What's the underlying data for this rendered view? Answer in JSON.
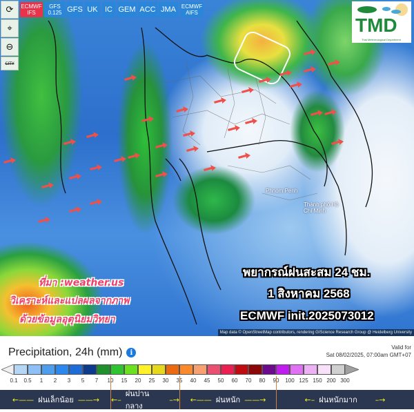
{
  "toolbar": {
    "side_buttons": [
      {
        "icon": "refresh-icon"
      },
      {
        "icon": "location-pin-icon"
      },
      {
        "icon": "zoom-out-icon"
      },
      {
        "icon": "city-toggle-icon",
        "label": "CITY"
      }
    ],
    "model_tabs": [
      {
        "label": "ECMWF IFS",
        "active": true
      },
      {
        "label": "GFS 0.125"
      },
      {
        "label": "GFS"
      },
      {
        "label": "UK"
      },
      {
        "label": "IC"
      },
      {
        "label": "GEM"
      },
      {
        "label": "ACC"
      },
      {
        "label": "JMA"
      },
      {
        "label": "ECMWF AIFS"
      }
    ]
  },
  "logo": {
    "text": "TMD",
    "subtitle": "Thai Meteorological Department"
  },
  "map": {
    "places": [
      "Phnom Penh",
      "Thành phố Hồ Chí Minh"
    ],
    "overlay_right": [
      "พยากรณ์ฝนสะสม 24 ชม.",
      "1 สิงหาคม 2568",
      "ECMWF init.2025073012"
    ],
    "overlay_left": [
      "ที่มา :weather.us",
      "วิเคราะห์และแปลผลจากภาพ",
      "ด้วยข้อมูลอุตุนิยมวิทยา"
    ],
    "attribution": "Map data © OpenStreetMap contributors, rendering GIScience Research Group @ Heidelberg University",
    "arrow_color": "#f0504a"
  },
  "legend": {
    "title": "Precipitation, 24h (mm)",
    "info_icon": "info-icon",
    "valid_label": "Valid for",
    "valid_time": "Sat 08/02/2025, 07:00am GMT+07",
    "ticks": [
      "0.1",
      "0.5",
      "1",
      "2",
      "3",
      "5",
      "7",
      "10",
      "15",
      "20",
      "25",
      "30",
      "35",
      "40",
      "45",
      "50",
      "60",
      "70",
      "80",
      "90",
      "100",
      "125",
      "150",
      "200",
      "300"
    ],
    "colors": [
      "#b6d6f6",
      "#8cc0f6",
      "#4e9ef0",
      "#2a88ee",
      "#1e6cd8",
      "#0c3a8c",
      "#20902c",
      "#30c430",
      "#6ae220",
      "#fff22a",
      "#e6d81a",
      "#ec6a10",
      "#fc8a2c",
      "#f8a070",
      "#ec5070",
      "#ec2050",
      "#c00c10",
      "#8c0808",
      "#6c0c8c",
      "#c01cf0",
      "#e070f4",
      "#ecb0f4",
      "#f8e0f8",
      "#d0d0d0"
    ],
    "categories": [
      {
        "label": "ฝนเล็กน้อย",
        "range": "0.1–10"
      },
      {
        "label": "ฝนปานกลาง",
        "range": "10–35"
      },
      {
        "label": "ฝนหนัก",
        "range": "35–90"
      },
      {
        "label": "ฝนหนักมาก",
        "range": "90+"
      }
    ]
  }
}
